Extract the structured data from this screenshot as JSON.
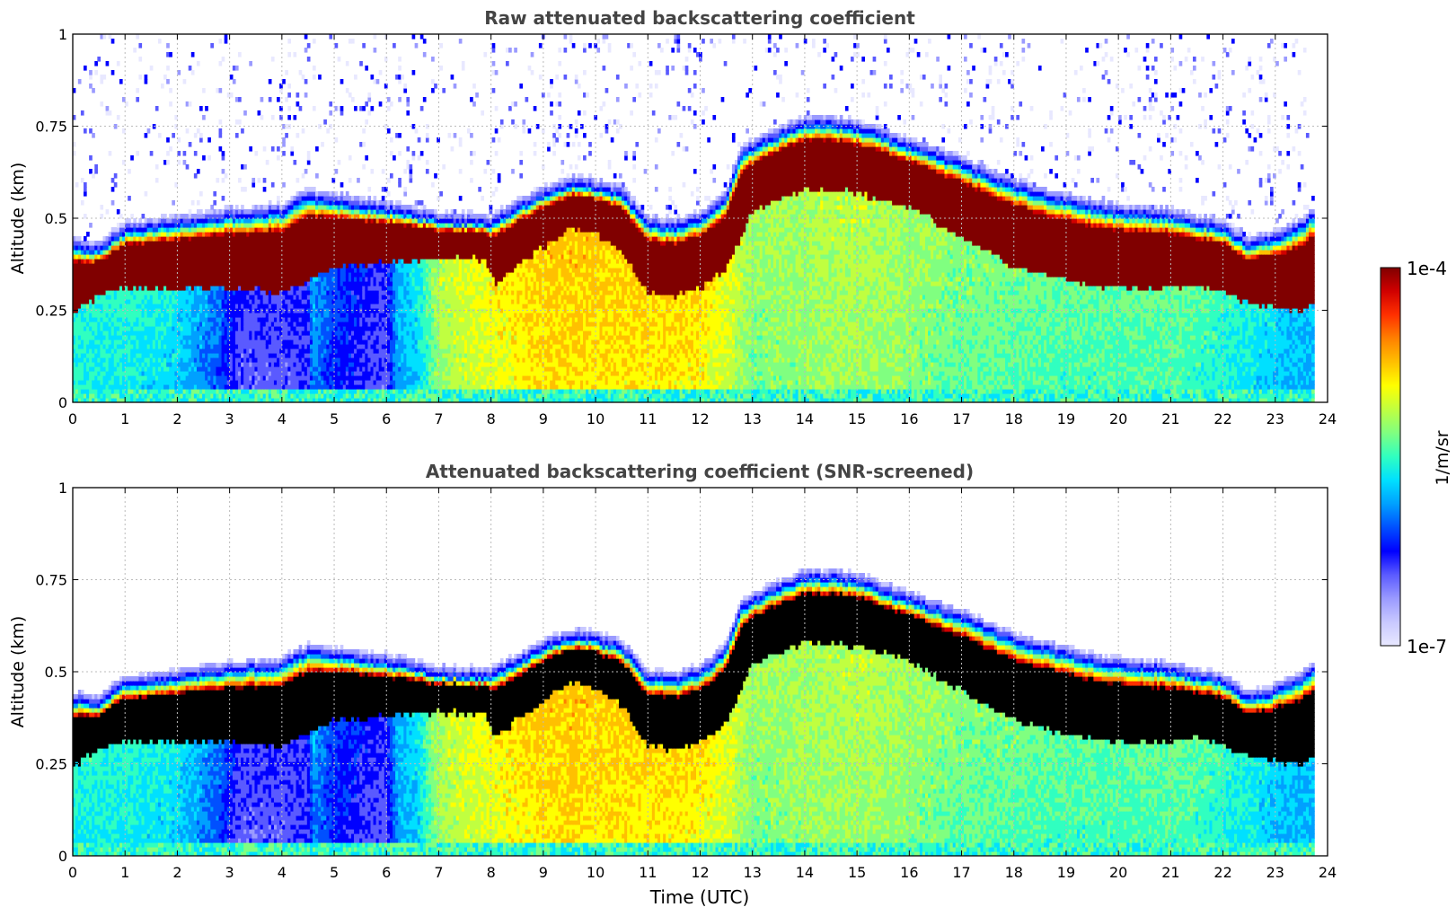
{
  "chart_data": [
    {
      "type": "heatmap",
      "title": "Raw attenuated backscattering coefficient",
      "xlabel": "",
      "ylabel": "Altitude (km)",
      "xlim": [
        0,
        24
      ],
      "ylim": [
        0,
        1
      ],
      "x_ticks": [
        "0",
        "1",
        "2",
        "3",
        "4",
        "5",
        "6",
        "7",
        "8",
        "9",
        "10",
        "11",
        "12",
        "13",
        "14",
        "15",
        "16",
        "17",
        "18",
        "19",
        "20",
        "21",
        "22",
        "23",
        "24"
      ],
      "y_ticks": [
        "0",
        "0.25",
        "0.5",
        "0.75",
        "1"
      ],
      "grid": true,
      "screened": false,
      "layer_top_km": [
        [
          0,
          0.42
        ],
        [
          0.5,
          0.41
        ],
        [
          0.8,
          0.44
        ],
        [
          1,
          0.46
        ],
        [
          2,
          0.48
        ],
        [
          3,
          0.5
        ],
        [
          4,
          0.51
        ],
        [
          4.5,
          0.55
        ],
        [
          5,
          0.54
        ],
        [
          6,
          0.52
        ],
        [
          7,
          0.49
        ],
        [
          8,
          0.48
        ],
        [
          9,
          0.56
        ],
        [
          9.6,
          0.59
        ],
        [
          10,
          0.58
        ],
        [
          10.5,
          0.56
        ],
        [
          11,
          0.48
        ],
        [
          11.5,
          0.47
        ],
        [
          12,
          0.49
        ],
        [
          12.5,
          0.55
        ],
        [
          12.8,
          0.67
        ],
        [
          13.5,
          0.72
        ],
        [
          14,
          0.75
        ],
        [
          14.5,
          0.75
        ],
        [
          15,
          0.74
        ],
        [
          16,
          0.69
        ],
        [
          17,
          0.64
        ],
        [
          18,
          0.58
        ],
        [
          19,
          0.54
        ],
        [
          20,
          0.51
        ],
        [
          21,
          0.5
        ],
        [
          21.5,
          0.48
        ],
        [
          22,
          0.47
        ],
        [
          22.5,
          0.42
        ],
        [
          23,
          0.44
        ],
        [
          23.5,
          0.47
        ],
        [
          23.7,
          0.5
        ]
      ],
      "layer_bottom_km": [
        [
          0,
          0.24
        ],
        [
          0.5,
          0.29
        ],
        [
          1,
          0.31
        ],
        [
          2,
          0.31
        ],
        [
          3,
          0.31
        ],
        [
          4,
          0.3
        ],
        [
          4.5,
          0.33
        ],
        [
          5,
          0.37
        ],
        [
          6,
          0.38
        ],
        [
          7,
          0.39
        ],
        [
          7.9,
          0.39
        ],
        [
          8.1,
          0.32
        ],
        [
          8.5,
          0.37
        ],
        [
          9,
          0.42
        ],
        [
          9.5,
          0.47
        ],
        [
          10,
          0.46
        ],
        [
          10.5,
          0.41
        ],
        [
          11,
          0.3
        ],
        [
          11.5,
          0.29
        ],
        [
          12,
          0.31
        ],
        [
          12.5,
          0.36
        ],
        [
          12.8,
          0.45
        ],
        [
          13,
          0.52
        ],
        [
          14,
          0.58
        ],
        [
          15,
          0.57
        ],
        [
          16,
          0.53
        ],
        [
          17,
          0.45
        ],
        [
          18,
          0.37
        ],
        [
          19,
          0.33
        ],
        [
          20,
          0.31
        ],
        [
          21,
          0.31
        ],
        [
          21.5,
          0.32
        ],
        [
          22,
          0.3
        ],
        [
          22.5,
          0.27
        ],
        [
          23,
          0.26
        ],
        [
          23.5,
          0.25
        ],
        [
          23.7,
          0.27
        ]
      ],
      "background_intensity": [
        [
          0,
          0.45
        ],
        [
          1,
          0.45
        ],
        [
          2,
          0.42
        ],
        [
          2.8,
          0.3
        ],
        [
          3.2,
          0.18
        ],
        [
          4,
          0.18
        ],
        [
          4.5,
          0.2
        ],
        [
          4.6,
          0.35
        ],
        [
          5,
          0.26
        ],
        [
          6,
          0.18
        ],
        [
          6.2,
          0.36
        ],
        [
          6.6,
          0.42
        ],
        [
          7,
          0.58
        ],
        [
          7.5,
          0.62
        ],
        [
          8.2,
          0.66
        ],
        [
          9,
          0.7
        ],
        [
          9.6,
          0.71
        ],
        [
          10,
          0.7
        ],
        [
          11,
          0.69
        ],
        [
          12,
          0.68
        ],
        [
          12.6,
          0.62
        ],
        [
          13,
          0.55
        ],
        [
          14,
          0.57
        ],
        [
          15,
          0.59
        ],
        [
          16,
          0.56
        ],
        [
          17,
          0.53
        ],
        [
          18,
          0.52
        ],
        [
          19,
          0.5
        ],
        [
          20,
          0.5
        ],
        [
          21,
          0.51
        ],
        [
          22,
          0.47
        ],
        [
          23,
          0.4
        ],
        [
          23.7,
          0.38
        ]
      ]
    },
    {
      "type": "heatmap",
      "title": "Attenuated backscattering coefficient (SNR-screened)",
      "xlabel": "Time (UTC)",
      "ylabel": "Altitude (km)",
      "xlim": [
        0,
        24
      ],
      "ylim": [
        0,
        1
      ],
      "x_ticks": [
        "0",
        "1",
        "2",
        "3",
        "4",
        "5",
        "6",
        "7",
        "8",
        "9",
        "10",
        "11",
        "12",
        "13",
        "14",
        "15",
        "16",
        "17",
        "18",
        "19",
        "20",
        "21",
        "22",
        "23",
        "24"
      ],
      "y_ticks": [
        "0",
        "0.25",
        "0.5",
        "0.75",
        "1"
      ],
      "grid": true,
      "screened": true,
      "saturation_color": "#000000",
      "layer_top_km": [
        [
          0,
          0.42
        ],
        [
          0.5,
          0.41
        ],
        [
          0.8,
          0.44
        ],
        [
          1,
          0.46
        ],
        [
          2,
          0.48
        ],
        [
          3,
          0.5
        ],
        [
          4,
          0.51
        ],
        [
          4.5,
          0.55
        ],
        [
          5,
          0.54
        ],
        [
          6,
          0.52
        ],
        [
          7,
          0.49
        ],
        [
          8,
          0.48
        ],
        [
          9,
          0.56
        ],
        [
          9.6,
          0.59
        ],
        [
          10,
          0.58
        ],
        [
          10.5,
          0.56
        ],
        [
          11,
          0.48
        ],
        [
          11.5,
          0.47
        ],
        [
          12,
          0.49
        ],
        [
          12.5,
          0.55
        ],
        [
          12.8,
          0.67
        ],
        [
          13.5,
          0.72
        ],
        [
          14,
          0.75
        ],
        [
          14.5,
          0.75
        ],
        [
          15,
          0.74
        ],
        [
          16,
          0.69
        ],
        [
          17,
          0.64
        ],
        [
          18,
          0.58
        ],
        [
          19,
          0.54
        ],
        [
          20,
          0.51
        ],
        [
          21,
          0.5
        ],
        [
          21.5,
          0.48
        ],
        [
          22,
          0.47
        ],
        [
          22.5,
          0.42
        ],
        [
          23,
          0.44
        ],
        [
          23.5,
          0.47
        ],
        [
          23.7,
          0.5
        ]
      ],
      "layer_bottom_km": [
        [
          0,
          0.24
        ],
        [
          0.5,
          0.29
        ],
        [
          1,
          0.31
        ],
        [
          2,
          0.31
        ],
        [
          3,
          0.31
        ],
        [
          4,
          0.3
        ],
        [
          4.5,
          0.33
        ],
        [
          5,
          0.37
        ],
        [
          6,
          0.38
        ],
        [
          7,
          0.39
        ],
        [
          7.9,
          0.39
        ],
        [
          8.1,
          0.32
        ],
        [
          8.5,
          0.37
        ],
        [
          9,
          0.42
        ],
        [
          9.5,
          0.47
        ],
        [
          10,
          0.46
        ],
        [
          10.5,
          0.41
        ],
        [
          11,
          0.3
        ],
        [
          11.5,
          0.29
        ],
        [
          12,
          0.31
        ],
        [
          12.5,
          0.36
        ],
        [
          12.8,
          0.45
        ],
        [
          13,
          0.52
        ],
        [
          14,
          0.58
        ],
        [
          15,
          0.57
        ],
        [
          16,
          0.53
        ],
        [
          17,
          0.45
        ],
        [
          18,
          0.37
        ],
        [
          19,
          0.33
        ],
        [
          20,
          0.31
        ],
        [
          21,
          0.31
        ],
        [
          21.5,
          0.32
        ],
        [
          22,
          0.3
        ],
        [
          22.5,
          0.27
        ],
        [
          23,
          0.26
        ],
        [
          23.5,
          0.25
        ],
        [
          23.7,
          0.27
        ]
      ],
      "background_intensity": [
        [
          0,
          0.45
        ],
        [
          1,
          0.45
        ],
        [
          2,
          0.42
        ],
        [
          2.8,
          0.3
        ],
        [
          3.2,
          0.18
        ],
        [
          4,
          0.18
        ],
        [
          4.5,
          0.2
        ],
        [
          4.6,
          0.35
        ],
        [
          5,
          0.26
        ],
        [
          6,
          0.18
        ],
        [
          6.2,
          0.36
        ],
        [
          6.6,
          0.42
        ],
        [
          7,
          0.58
        ],
        [
          7.5,
          0.62
        ],
        [
          8.2,
          0.66
        ],
        [
          9,
          0.7
        ],
        [
          9.6,
          0.71
        ],
        [
          10,
          0.7
        ],
        [
          11,
          0.69
        ],
        [
          12,
          0.68
        ],
        [
          12.6,
          0.62
        ],
        [
          13,
          0.55
        ],
        [
          14,
          0.57
        ],
        [
          15,
          0.59
        ],
        [
          16,
          0.56
        ],
        [
          17,
          0.53
        ],
        [
          18,
          0.52
        ],
        [
          19,
          0.5
        ],
        [
          20,
          0.5
        ],
        [
          21,
          0.51
        ],
        [
          22,
          0.47
        ],
        [
          23,
          0.4
        ],
        [
          23.7,
          0.38
        ]
      ]
    }
  ],
  "data_end_hour": 23.75,
  "colorbar": {
    "label": "1/m/sr",
    "max_label": "1e-4",
    "min_label": "1e-7",
    "colors": [
      "#e8e8ff",
      "#c8c8ff",
      "#9a9aff",
      "#5a5aff",
      "#0000ff",
      "#0050ff",
      "#00a0ff",
      "#00e0ff",
      "#30ffc0",
      "#80ff80",
      "#c0ff40",
      "#ffff00",
      "#ffc000",
      "#ff8000",
      "#ff3000",
      "#d00000",
      "#800000"
    ]
  }
}
